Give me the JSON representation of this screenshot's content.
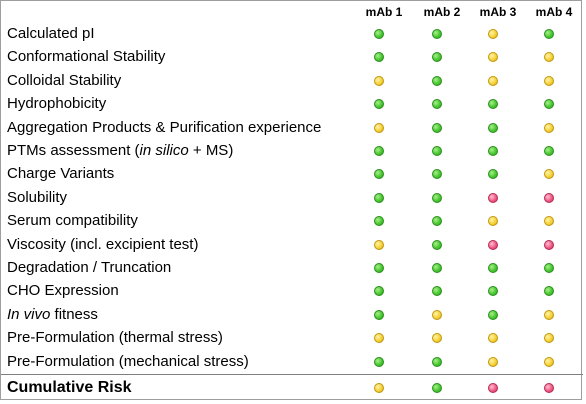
{
  "columns": [
    "mAb 1",
    "mAb 2",
    "mAb 3",
    "mAb 4"
  ],
  "colors": {
    "green": "#49c832",
    "yellow": "#f5d23a",
    "red": "#ef5b87"
  },
  "rows": [
    {
      "label": "Calculated pI",
      "ratings": [
        "green",
        "green",
        "yellow",
        "green"
      ]
    },
    {
      "label": "Conformational Stability",
      "ratings": [
        "green",
        "green",
        "yellow",
        "yellow"
      ]
    },
    {
      "label": "Colloidal Stability",
      "ratings": [
        "yellow",
        "green",
        "yellow",
        "yellow"
      ]
    },
    {
      "label": "Hydrophobicity",
      "ratings": [
        "green",
        "green",
        "green",
        "green"
      ]
    },
    {
      "label": "Aggregation Products & Purification experience",
      "ratings": [
        "yellow",
        "green",
        "green",
        "yellow"
      ]
    },
    {
      "label_parts": [
        "PTMs assessment (",
        "in silico",
        " + MS)"
      ],
      "ratings": [
        "green",
        "green",
        "green",
        "green"
      ]
    },
    {
      "label": "Charge Variants",
      "ratings": [
        "green",
        "green",
        "green",
        "yellow"
      ]
    },
    {
      "label": "Solubility",
      "ratings": [
        "green",
        "green",
        "red",
        "red"
      ]
    },
    {
      "label": "Serum compatibility",
      "ratings": [
        "green",
        "green",
        "yellow",
        "yellow"
      ]
    },
    {
      "label": "Viscosity (incl. excipient test)",
      "ratings": [
        "yellow",
        "green",
        "red",
        "red"
      ]
    },
    {
      "label": "Degradation / Truncation",
      "ratings": [
        "green",
        "green",
        "green",
        "green"
      ]
    },
    {
      "label": "CHO Expression",
      "ratings": [
        "green",
        "green",
        "green",
        "green"
      ]
    },
    {
      "label_parts": [
        "",
        "In vivo",
        " fitness"
      ],
      "ratings": [
        "green",
        "yellow",
        "green",
        "yellow"
      ]
    },
    {
      "label": "Pre-Formulation (thermal stress)",
      "ratings": [
        "yellow",
        "yellow",
        "yellow",
        "yellow"
      ]
    },
    {
      "label": "Pre-Formulation (mechanical stress)",
      "ratings": [
        "green",
        "green",
        "yellow",
        "yellow"
      ]
    }
  ],
  "total": {
    "label": "Cumulative Risk",
    "ratings": [
      "yellow",
      "green",
      "red",
      "red"
    ]
  }
}
